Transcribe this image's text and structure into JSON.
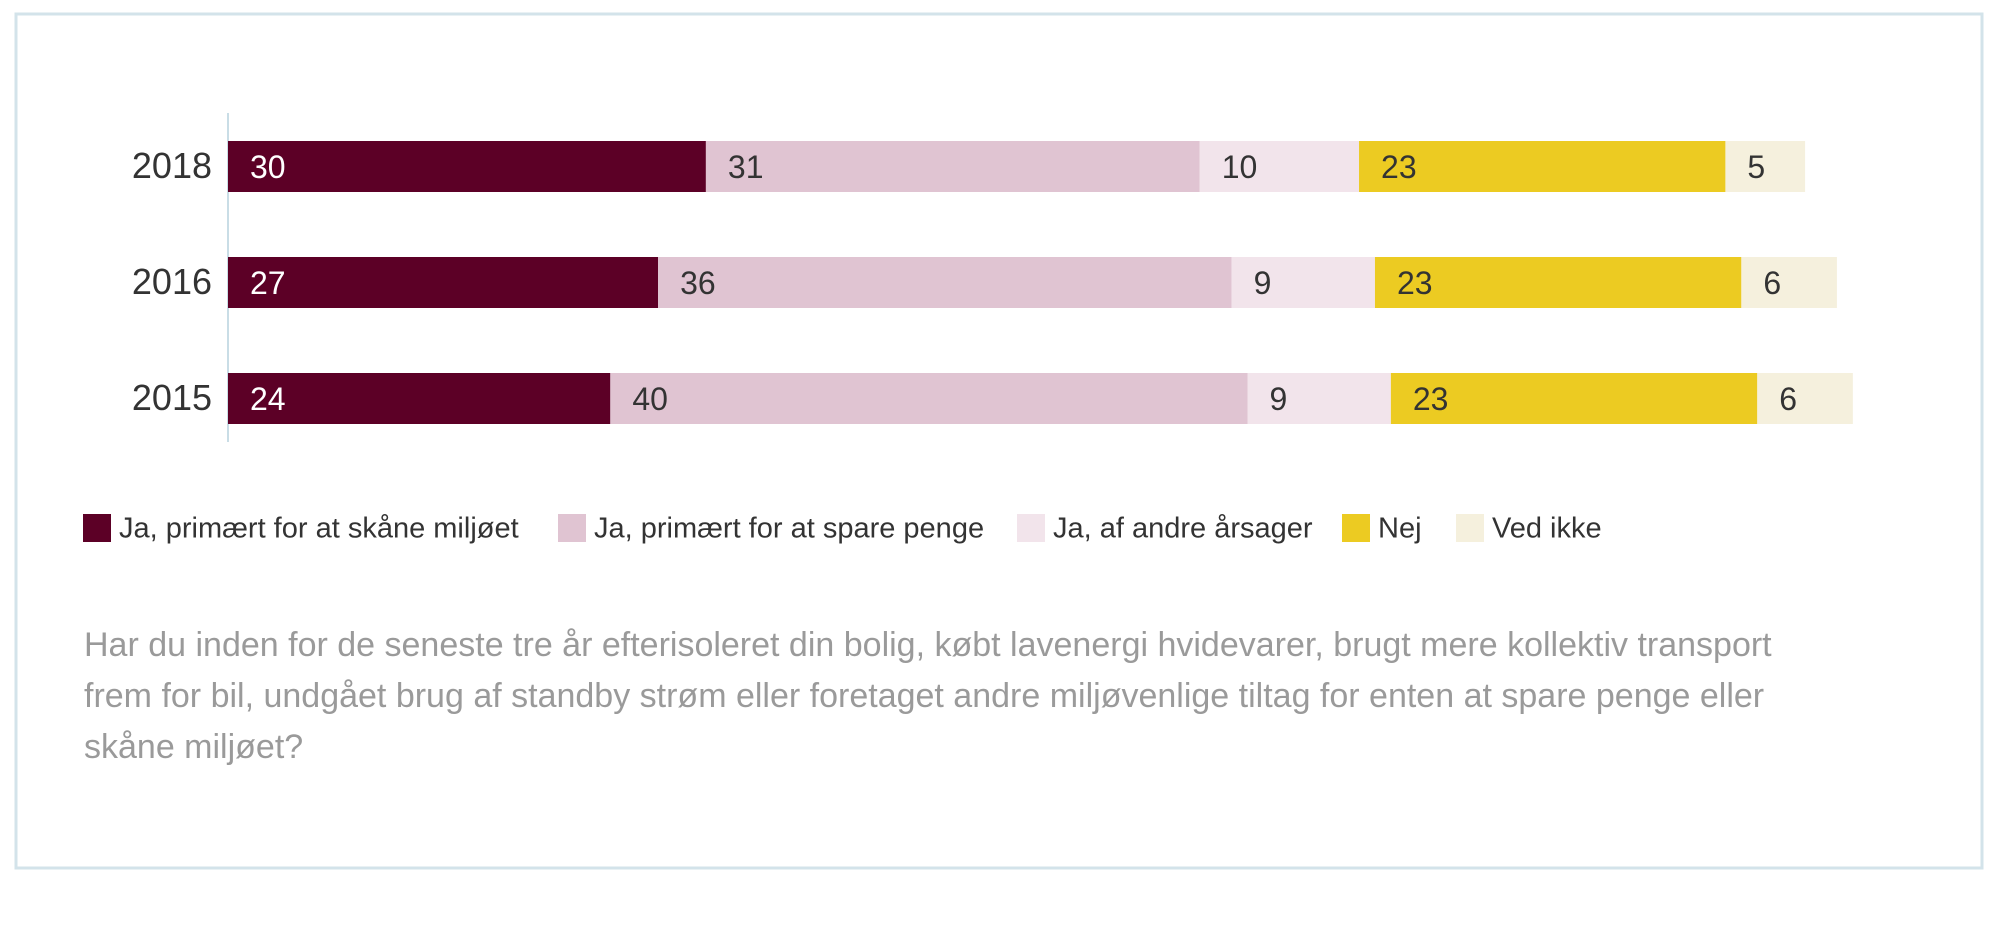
{
  "chart_data": {
    "type": "bar",
    "orientation": "horizontal",
    "stacked": true,
    "categories": [
      "2018",
      "2016",
      "2015"
    ],
    "series": [
      {
        "name": "Ja, primært for at skåne miljøet",
        "color": "#5c0026",
        "values": [
          30,
          27,
          24
        ]
      },
      {
        "name": "Ja, primært for at spare penge",
        "color": "#e0c4d2",
        "values": [
          31,
          36,
          40
        ]
      },
      {
        "name": "Ja, af andre årsager",
        "color": "#f2e4eb",
        "values": [
          10,
          9,
          9
        ]
      },
      {
        "name": "Nej",
        "color": "#eccb22",
        "values": [
          23,
          23,
          23
        ]
      },
      {
        "name": "Ved ikke",
        "color": "#f5f0dd",
        "values": [
          5,
          6,
          6
        ]
      }
    ],
    "caption": [
      "Har du inden for de seneste tre år efterisoleret din bolig, købt lavenergi hvidevarer, brugt mere kollektiv transport",
      "frem for bil, undgået brug af standby strøm eller foretaget andre miljøvenlige tiltag for enten at spare penge eller",
      "skåne miljøet?"
    ]
  }
}
